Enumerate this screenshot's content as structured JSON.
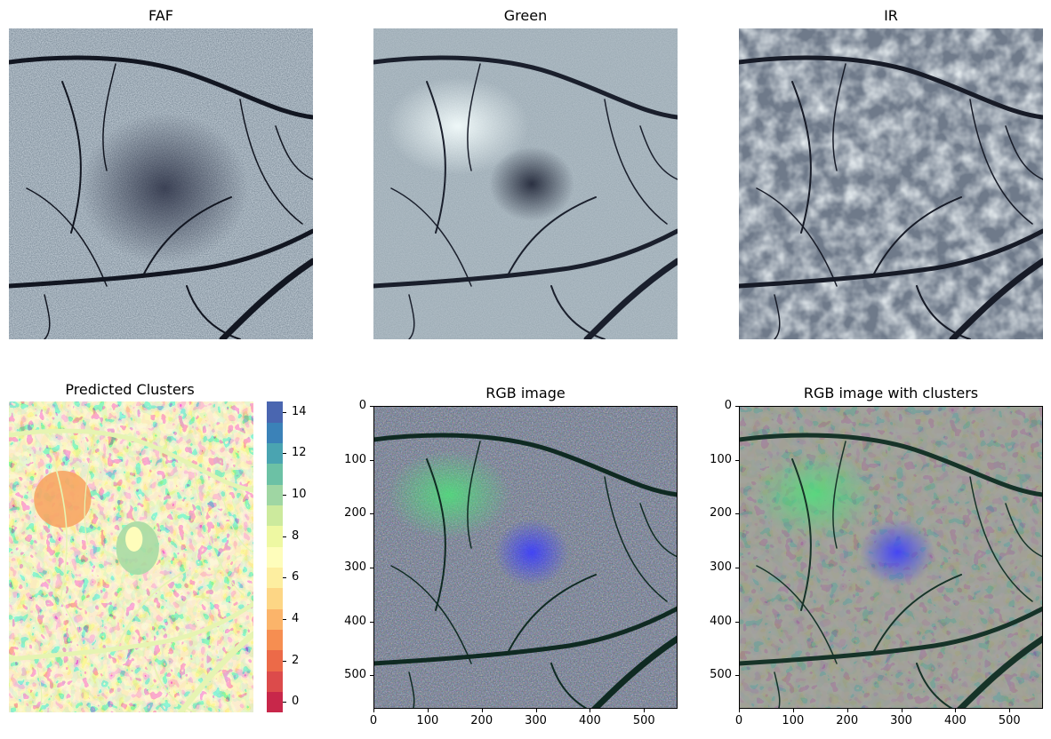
{
  "panels": {
    "faf": {
      "title": "FAF"
    },
    "green": {
      "title": "Green"
    },
    "ir": {
      "title": "IR"
    },
    "clusters": {
      "title": "Predicted Clusters"
    },
    "rgb": {
      "title": "RGB image"
    },
    "rgb_clusters": {
      "title": "RGB image with clusters"
    }
  },
  "colorbar": {
    "ticks": [
      "14",
      "12",
      "10",
      "8",
      "6",
      "4",
      "2",
      "0"
    ],
    "colors": [
      "#c8274a",
      "#dc4b4b",
      "#ec6a48",
      "#f68e51",
      "#fbb46a",
      "#fdd685",
      "#fdeea0",
      "#fefdbb",
      "#eef8a2",
      "#ccea9d",
      "#9fd6a3",
      "#6cc1a5",
      "#4aa4b1",
      "#3b82b8",
      "#4a66b0"
    ]
  },
  "axes": {
    "ticks": [
      "0",
      "100",
      "200",
      "300",
      "400",
      "500"
    ]
  }
}
